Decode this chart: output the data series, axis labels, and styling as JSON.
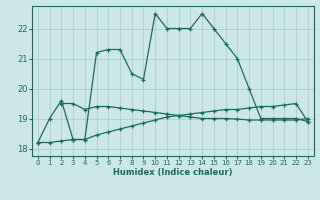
{
  "xlabel": "Humidex (Indice chaleur)",
  "bg_color": "#cce8e6",
  "line_color": "#1a6b5a",
  "grid_color": "#aacfcc",
  "xlim": [
    -0.5,
    23.5
  ],
  "ylim": [
    17.75,
    22.75
  ],
  "xticks": [
    0,
    1,
    2,
    3,
    4,
    5,
    6,
    7,
    8,
    9,
    10,
    11,
    12,
    13,
    14,
    15,
    16,
    17,
    18,
    19,
    20,
    21,
    22,
    23
  ],
  "yticks": [
    18,
    19,
    20,
    21,
    22
  ],
  "curve1_x": [
    0,
    1,
    2,
    3,
    4,
    5,
    6,
    7,
    8,
    9,
    10,
    11,
    12,
    13,
    14,
    15,
    16,
    17,
    18,
    19,
    20,
    21,
    22,
    23
  ],
  "curve1_y": [
    18.2,
    19.0,
    19.6,
    18.3,
    18.3,
    21.2,
    21.3,
    21.3,
    20.5,
    20.3,
    22.5,
    22.0,
    22.0,
    22.0,
    22.5,
    22.0,
    21.5,
    21.0,
    20.0,
    19.0,
    19.0,
    19.0,
    19.0,
    18.9
  ],
  "curve2_x": [
    2,
    3,
    4,
    5,
    6,
    7,
    8,
    9,
    10,
    11,
    12,
    13,
    14,
    15,
    16,
    17,
    18,
    19,
    20,
    21,
    22,
    23
  ],
  "curve2_y": [
    19.5,
    19.5,
    19.3,
    19.4,
    19.4,
    19.35,
    19.3,
    19.25,
    19.2,
    19.15,
    19.1,
    19.05,
    19.0,
    19.0,
    19.0,
    18.98,
    18.95,
    18.95,
    18.95,
    18.95,
    18.95,
    19.0
  ],
  "curve3_x": [
    0,
    1,
    2,
    3,
    4,
    5,
    6,
    7,
    8,
    9,
    10,
    11,
    12,
    13,
    14,
    15,
    16,
    17,
    18,
    19,
    20,
    21,
    22,
    23
  ],
  "curve3_y": [
    18.2,
    18.2,
    18.25,
    18.3,
    18.3,
    18.45,
    18.55,
    18.65,
    18.75,
    18.85,
    18.95,
    19.05,
    19.1,
    19.15,
    19.2,
    19.25,
    19.3,
    19.3,
    19.35,
    19.4,
    19.4,
    19.45,
    19.5,
    18.9
  ]
}
